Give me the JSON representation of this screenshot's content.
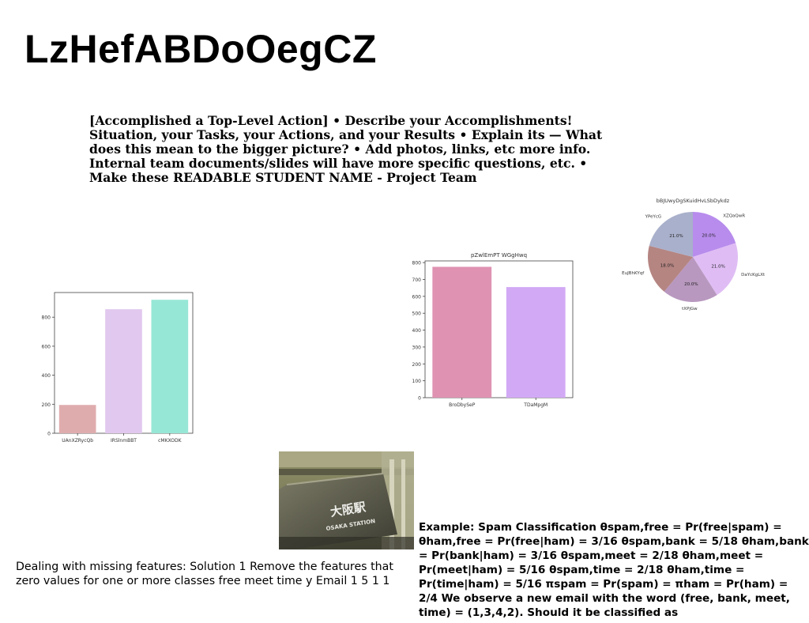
{
  "slide": {
    "title": "LzHefABDoOegCZ",
    "body_text": "[Accomplished a Top-Level Action] • Describe your Accomplishments! Situation, your Tasks, your Actions, and your Results • Explain its — What does this mean to the bigger picture? • Add photos, links, etc more info. Internal team documents/slides will have more specific questions, etc. • Make these READABLE STUDENT NAME - Project Team",
    "missing_features_text": "Dealing with missing features: Solution 1 Remove the features that zero values for one or more classes free meet time y Email 1 5 1 1",
    "spam_text": "Example: Spam Classification θspam,free = Pr(free|spam) = θham,free = Pr(free|ham) = 3/16 θspam,bank = 5/18 θham,bank = Pr(bank|ham) = 3/16 θspam,meet = 2/18 θham,meet = Pr(meet|ham) = 5/16 θspam,time = 2/18 θham,time = Pr(time|ham) = 5/16 πspam = Pr(spam) = πham = Pr(ham) = 2/4 We observe a new email with the word (free, bank, meet, time) = (1,3,4,2). Should it be classified as",
    "photo": {
      "sign_kanji": "大阪駅",
      "sign_latin": "OSAKA STATION"
    }
  },
  "chart_data": [
    {
      "type": "bar",
      "title": "",
      "categories": [
        "UAnXZRycQb",
        "IRSlnmBBT",
        "cMKXODK"
      ],
      "values": [
        195,
        855,
        920
      ],
      "ylim": [
        0,
        970
      ],
      "yticks": [
        0,
        200,
        400,
        600,
        800
      ],
      "colors": [
        "#dfacad",
        "#e1c8ee",
        "#97e7d6"
      ],
      "grid": false
    },
    {
      "type": "bar",
      "title": "pZwlEmPT WGgHwq",
      "categories": [
        "BroDbySeP",
        "TDaMpgM"
      ],
      "values": [
        775,
        655
      ],
      "ylim": [
        0,
        810
      ],
      "yticks": [
        0,
        100,
        200,
        300,
        400,
        500,
        600,
        700,
        800
      ],
      "colors": [
        "#df92b2",
        "#d2a9f5"
      ],
      "grid": false
    },
    {
      "type": "pie",
      "title": "bBJUwyDgSKuidHvLSbDykdz",
      "labels": [
        "XZQaQwR",
        "DaYcKgLXt",
        "tXPjGw",
        "EuJBhKYqf",
        "YPeYcG"
      ],
      "values": [
        20.0,
        21.0,
        20.0,
        18.0,
        21.0
      ],
      "value_labels": [
        "20.0%",
        "21.0%",
        "20.0%",
        "18.0%",
        "21.0%"
      ],
      "colors": [
        "#b88ced",
        "#dfbdf4",
        "#b898bf",
        "#b58582",
        "#a9b0cb"
      ]
    }
  ]
}
